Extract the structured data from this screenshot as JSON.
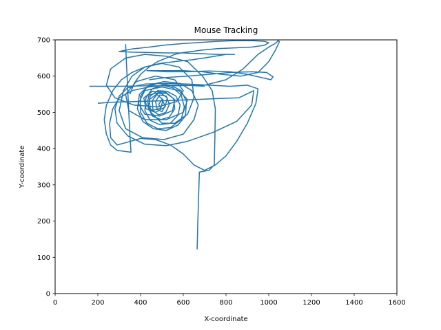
{
  "chart_data": {
    "type": "line",
    "title": "Mouse Tracking",
    "xlabel": "X-coordinate",
    "ylabel": "Y-coordinate",
    "xlim": [
      0,
      1600
    ],
    "ylim": [
      0,
      700
    ],
    "x_ticks": [
      0,
      200,
      400,
      600,
      800,
      1000,
      1200,
      1400,
      1600
    ],
    "y_ticks": [
      0,
      100,
      200,
      300,
      400,
      500,
      600,
      700
    ],
    "grid": false,
    "line_color": "#1f77b4",
    "series": [
      {
        "points": [
          [
            665,
            122
          ],
          [
            668,
            200
          ],
          [
            672,
            270
          ],
          [
            675,
            335
          ],
          [
            720,
            340
          ],
          [
            745,
            355
          ],
          [
            748,
            435
          ],
          [
            750,
            510
          ],
          [
            735,
            560
          ],
          [
            690,
            600
          ],
          [
            620,
            640
          ],
          [
            520,
            655
          ],
          [
            420,
            660
          ],
          [
            330,
            650
          ],
          [
            260,
            620
          ],
          [
            240,
            575
          ],
          [
            280,
            540
          ],
          [
            370,
            520
          ],
          [
            480,
            515
          ],
          [
            570,
            530
          ],
          [
            600,
            560
          ],
          [
            560,
            590
          ],
          [
            470,
            600
          ],
          [
            380,
            585
          ],
          [
            330,
            550
          ],
          [
            345,
            505
          ],
          [
            420,
            480
          ],
          [
            520,
            480
          ],
          [
            600,
            500
          ],
          [
            620,
            535
          ],
          [
            580,
            560
          ],
          [
            500,
            570
          ],
          [
            420,
            560
          ],
          [
            390,
            525
          ],
          [
            420,
            495
          ],
          [
            490,
            490
          ],
          [
            550,
            505
          ],
          [
            560,
            535
          ],
          [
            520,
            555
          ],
          [
            455,
            558
          ],
          [
            415,
            540
          ],
          [
            425,
            510
          ],
          [
            470,
            500
          ],
          [
            515,
            515
          ],
          [
            525,
            540
          ],
          [
            490,
            555
          ],
          [
            440,
            548
          ],
          [
            428,
            520
          ],
          [
            455,
            505
          ],
          [
            495,
            512
          ],
          [
            505,
            535
          ],
          [
            475,
            550
          ],
          [
            440,
            535
          ],
          [
            448,
            500
          ],
          [
            500,
            470
          ],
          [
            560,
            470
          ],
          [
            620,
            495
          ],
          [
            650,
            540
          ],
          [
            640,
            590
          ],
          [
            580,
            625
          ],
          [
            500,
            635
          ],
          [
            420,
            625
          ],
          [
            360,
            600
          ],
          [
            320,
            560
          ],
          [
            300,
            505
          ],
          [
            330,
            455
          ],
          [
            410,
            430
          ],
          [
            510,
            425
          ],
          [
            600,
            440
          ],
          [
            650,
            480
          ],
          [
            670,
            520
          ],
          [
            640,
            560
          ],
          [
            585,
            580
          ],
          [
            510,
            585
          ],
          [
            440,
            575
          ],
          [
            395,
            550
          ],
          [
            385,
            510
          ],
          [
            410,
            475
          ],
          [
            460,
            455
          ],
          [
            520,
            450
          ],
          [
            575,
            465
          ],
          [
            610,
            490
          ],
          [
            615,
            530
          ],
          [
            590,
            560
          ],
          [
            540,
            575
          ],
          [
            480,
            580
          ],
          [
            430,
            570
          ],
          [
            400,
            545
          ],
          [
            400,
            500
          ],
          [
            430,
            470
          ],
          [
            480,
            455
          ],
          [
            540,
            458
          ],
          [
            590,
            480
          ],
          [
            605,
            515
          ],
          [
            590,
            548
          ],
          [
            550,
            568
          ],
          [
            500,
            575
          ],
          [
            455,
            565
          ],
          [
            425,
            540
          ],
          [
            420,
            505
          ],
          [
            445,
            478
          ],
          [
            490,
            466
          ],
          [
            540,
            470
          ],
          [
            575,
            492
          ],
          [
            585,
            520
          ],
          [
            565,
            545
          ],
          [
            525,
            558
          ],
          [
            480,
            560
          ],
          [
            445,
            545
          ],
          [
            435,
            515
          ],
          [
            455,
            490
          ],
          [
            495,
            480
          ],
          [
            535,
            487
          ],
          [
            560,
            510
          ],
          [
            555,
            538
          ],
          [
            520,
            553
          ],
          [
            480,
            552
          ],
          [
            455,
            532
          ],
          [
            458,
            505
          ],
          [
            485,
            493
          ],
          [
            518,
            500
          ],
          [
            535,
            522
          ],
          [
            520,
            545
          ],
          [
            490,
            548
          ],
          [
            470,
            530
          ],
          [
            478,
            508
          ],
          [
            500,
            502
          ],
          [
            515,
            518
          ],
          [
            500,
            535
          ],
          [
            485,
            522
          ],
          [
            495,
            510
          ]
        ]
      },
      {
        "points": [
          [
            200,
            525
          ],
          [
            260,
            528
          ],
          [
            380,
            530
          ],
          [
            500,
            532
          ],
          [
            640,
            535
          ],
          [
            760,
            538
          ],
          [
            860,
            540
          ],
          [
            930,
            560
          ],
          [
            920,
            520
          ],
          [
            850,
            475
          ],
          [
            740,
            445
          ],
          [
            620,
            420
          ],
          [
            520,
            408
          ],
          [
            420,
            412
          ],
          [
            340,
            435
          ],
          [
            290,
            470
          ],
          [
            280,
            510
          ],
          [
            300,
            545
          ],
          [
            340,
            568
          ],
          [
            420,
            578
          ],
          [
            520,
            580
          ],
          [
            620,
            578
          ],
          [
            720,
            575
          ],
          [
            820,
            572
          ],
          [
            900,
            575
          ],
          [
            950,
            565
          ],
          [
            940,
            525
          ],
          [
            900,
            470
          ],
          [
            850,
            420
          ],
          [
            800,
            380
          ],
          [
            750,
            355
          ],
          [
            700,
            340
          ],
          [
            650,
            355
          ],
          [
            600,
            385
          ],
          [
            540,
            410
          ],
          [
            470,
            425
          ],
          [
            400,
            428
          ],
          [
            340,
            418
          ],
          [
            290,
            410
          ],
          [
            260,
            430
          ],
          [
            255,
            470
          ],
          [
            270,
            510
          ],
          [
            300,
            540
          ],
          [
            360,
            560
          ],
          [
            440,
            570
          ],
          [
            520,
            575
          ],
          [
            610,
            575
          ],
          [
            700,
            572
          ]
        ]
      },
      {
        "points": [
          [
            160,
            572
          ],
          [
            230,
            572
          ],
          [
            320,
            572
          ],
          [
            420,
            573
          ],
          [
            520,
            573
          ],
          [
            620,
            574
          ],
          [
            700,
            575
          ],
          [
            800,
            590
          ],
          [
            880,
            620
          ],
          [
            950,
            660
          ],
          [
            1000,
            680
          ],
          [
            1030,
            690
          ],
          [
            1045,
            698
          ],
          [
            1050,
            695
          ],
          [
            1030,
            670
          ],
          [
            1000,
            640
          ],
          [
            950,
            610
          ],
          [
            870,
            600
          ],
          [
            780,
            605
          ],
          [
            690,
            612
          ],
          [
            600,
            615
          ],
          [
            510,
            615
          ],
          [
            430,
            615
          ],
          [
            520,
            612
          ],
          [
            620,
            612
          ],
          [
            720,
            614
          ],
          [
            820,
            612
          ],
          [
            900,
            605
          ],
          [
            960,
            597
          ],
          [
            1010,
            590
          ],
          [
            1020,
            598
          ],
          [
            990,
            610
          ],
          [
            920,
            612
          ],
          [
            820,
            610
          ],
          [
            720,
            605
          ],
          [
            620,
            600
          ],
          [
            520,
            596
          ],
          [
            440,
            590
          ]
        ]
      },
      {
        "points": [
          [
            330,
            688
          ],
          [
            335,
            620
          ],
          [
            340,
            560
          ],
          [
            345,
            500
          ],
          [
            350,
            440
          ],
          [
            355,
            390
          ],
          [
            330,
            392
          ],
          [
            290,
            395
          ],
          [
            260,
            410
          ],
          [
            240,
            440
          ],
          [
            230,
            480
          ],
          [
            240,
            520
          ],
          [
            270,
            560
          ],
          [
            310,
            590
          ],
          [
            360,
            610
          ],
          [
            420,
            625
          ],
          [
            490,
            635
          ],
          [
            560,
            640
          ],
          [
            640,
            645
          ],
          [
            720,
            652
          ],
          [
            800,
            660
          ],
          [
            840,
            660
          ],
          [
            760,
            660
          ],
          [
            680,
            662
          ],
          [
            600,
            664
          ],
          [
            520,
            664
          ],
          [
            440,
            665
          ],
          [
            360,
            666
          ],
          [
            300,
            668
          ],
          [
            360,
            675
          ],
          [
            440,
            680
          ],
          [
            520,
            686
          ],
          [
            600,
            690
          ],
          [
            680,
            693
          ],
          [
            760,
            696
          ],
          [
            840,
            698
          ],
          [
            920,
            698
          ],
          [
            980,
            696
          ],
          [
            1000,
            692
          ],
          [
            980,
            685
          ],
          [
            920,
            680
          ],
          [
            840,
            678
          ],
          [
            760,
            676
          ],
          [
            690,
            672
          ],
          [
            640,
            668
          ],
          [
            600,
            665
          ],
          [
            560,
            660
          ],
          [
            520,
            650
          ],
          [
            480,
            640
          ],
          [
            440,
            625
          ],
          [
            400,
            605
          ],
          [
            370,
            580
          ],
          [
            350,
            550
          ]
        ]
      }
    ]
  }
}
